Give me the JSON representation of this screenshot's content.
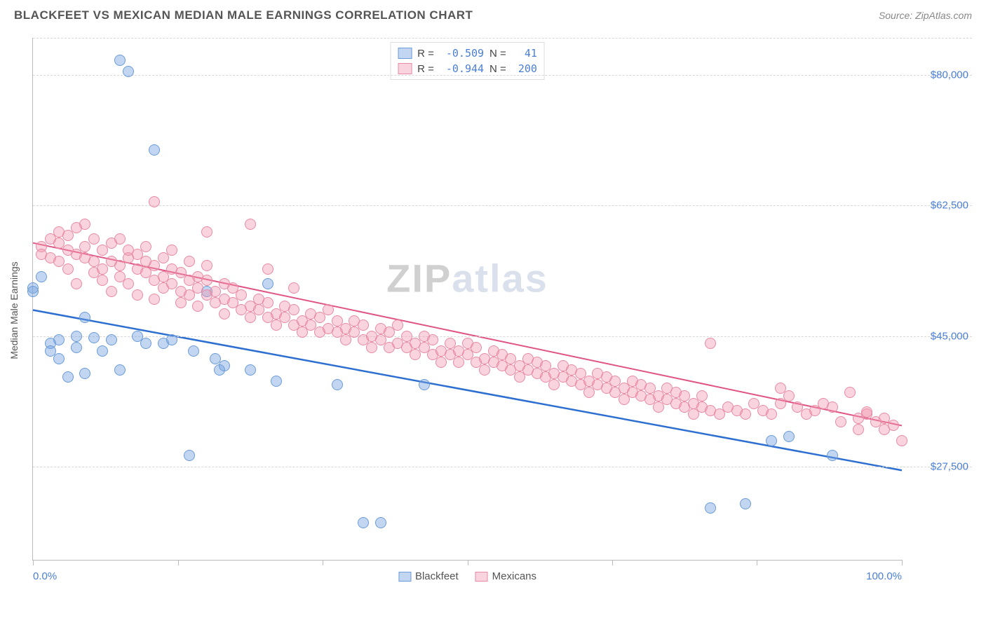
{
  "header": {
    "title": "BLACKFEET VS MEXICAN MEDIAN MALE EARNINGS CORRELATION CHART",
    "source": "Source: ZipAtlas.com"
  },
  "chart": {
    "type": "scatter",
    "ylabel": "Median Male Earnings",
    "xlim": [
      0,
      100
    ],
    "ylim": [
      15000,
      85000
    ],
    "xtick_labels": {
      "0": "0.0%",
      "100": "100.0%"
    },
    "xtick_positions": [
      0,
      16.67,
      33.33,
      50,
      66.67,
      83.33,
      100
    ],
    "yticks": [
      27500,
      45000,
      62500,
      80000
    ],
    "ytick_labels": [
      "$27,500",
      "$45,000",
      "$62,500",
      "$80,000"
    ],
    "grid_color": "#d8d8d8",
    "background_color": "#ffffff",
    "watermark": "ZIPatlas",
    "series": [
      {
        "name": "Blackfeet",
        "label": "Blackfeet",
        "fill_color": "rgba(120,165,225,0.45)",
        "stroke_color": "#6b9bd8",
        "line_color": "#2d6fd0",
        "line_width": 2.5,
        "r_value": "-0.509",
        "n_value": "41",
        "trend": {
          "x1": 0,
          "y1": 48500,
          "x2": 100,
          "y2": 27000
        },
        "point_radius": 8,
        "points": [
          [
            0,
            51500
          ],
          [
            0,
            51000
          ],
          [
            1,
            53000
          ],
          [
            2,
            44000
          ],
          [
            2,
            43000
          ],
          [
            3,
            44500
          ],
          [
            3,
            42000
          ],
          [
            4,
            39500
          ],
          [
            5,
            45000
          ],
          [
            5,
            43500
          ],
          [
            6,
            47500
          ],
          [
            6,
            40000
          ],
          [
            7,
            44800
          ],
          [
            8,
            43000
          ],
          [
            9,
            44500
          ],
          [
            10,
            40500
          ],
          [
            10,
            82000
          ],
          [
            11,
            80500
          ],
          [
            12,
            45000
          ],
          [
            13,
            44000
          ],
          [
            14,
            70000
          ],
          [
            15,
            44000
          ],
          [
            16,
            44500
          ],
          [
            18,
            29000
          ],
          [
            18.5,
            43000
          ],
          [
            20,
            51000
          ],
          [
            21,
            42000
          ],
          [
            21.5,
            40500
          ],
          [
            22,
            41000
          ],
          [
            25,
            40500
          ],
          [
            27,
            52000
          ],
          [
            28,
            39000
          ],
          [
            35,
            38500
          ],
          [
            38,
            20000
          ],
          [
            40,
            20000
          ],
          [
            45,
            38500
          ],
          [
            78,
            22000
          ],
          [
            82,
            22500
          ],
          [
            85,
            31000
          ],
          [
            87,
            31500
          ],
          [
            92,
            29000
          ]
        ]
      },
      {
        "name": "Mexicans",
        "label": "Mexicans",
        "fill_color": "rgba(240,150,175,0.42)",
        "stroke_color": "#e88aa5",
        "line_color": "#e05585",
        "line_width": 2,
        "r_value": "-0.944",
        "n_value": "200",
        "trend": {
          "x1": 0,
          "y1": 57500,
          "x2": 100,
          "y2": 33000
        },
        "point_radius": 8,
        "points": [
          [
            1,
            57000
          ],
          [
            1,
            56000
          ],
          [
            2,
            58000
          ],
          [
            2,
            55500
          ],
          [
            3,
            57500
          ],
          [
            3,
            55000
          ],
          [
            3,
            59000
          ],
          [
            4,
            56500
          ],
          [
            4,
            58500
          ],
          [
            4,
            54000
          ],
          [
            5,
            56000
          ],
          [
            5,
            59500
          ],
          [
            5,
            52000
          ],
          [
            6,
            57000
          ],
          [
            6,
            55500
          ],
          [
            6,
            60000
          ],
          [
            7,
            55000
          ],
          [
            7,
            53500
          ],
          [
            7,
            58000
          ],
          [
            8,
            56500
          ],
          [
            8,
            54000
          ],
          [
            8,
            52500
          ],
          [
            9,
            55000
          ],
          [
            9,
            57500
          ],
          [
            9,
            51000
          ],
          [
            10,
            54500
          ],
          [
            10,
            53000
          ],
          [
            10,
            58000
          ],
          [
            11,
            55500
          ],
          [
            11,
            52000
          ],
          [
            11,
            56500
          ],
          [
            12,
            54000
          ],
          [
            12,
            50500
          ],
          [
            12,
            56000
          ],
          [
            13,
            53500
          ],
          [
            13,
            55000
          ],
          [
            13,
            57000
          ],
          [
            14,
            52500
          ],
          [
            14,
            54500
          ],
          [
            14,
            50000
          ],
          [
            14,
            63000
          ],
          [
            15,
            53000
          ],
          [
            15,
            55500
          ],
          [
            15,
            51500
          ],
          [
            16,
            52000
          ],
          [
            16,
            54000
          ],
          [
            16,
            56500
          ],
          [
            17,
            51000
          ],
          [
            17,
            53500
          ],
          [
            17,
            49500
          ],
          [
            18,
            52500
          ],
          [
            18,
            50500
          ],
          [
            18,
            55000
          ],
          [
            19,
            51500
          ],
          [
            19,
            53000
          ],
          [
            19,
            49000
          ],
          [
            20,
            50500
          ],
          [
            20,
            52500
          ],
          [
            20,
            54500
          ],
          [
            20,
            59000
          ],
          [
            21,
            51000
          ],
          [
            21,
            49500
          ],
          [
            22,
            50000
          ],
          [
            22,
            52000
          ],
          [
            22,
            48000
          ],
          [
            23,
            49500
          ],
          [
            23,
            51500
          ],
          [
            24,
            48500
          ],
          [
            24,
            50500
          ],
          [
            25,
            49000
          ],
          [
            25,
            47500
          ],
          [
            25,
            60000
          ],
          [
            26,
            48500
          ],
          [
            26,
            50000
          ],
          [
            27,
            47500
          ],
          [
            27,
            49500
          ],
          [
            27,
            54000
          ],
          [
            28,
            48000
          ],
          [
            28,
            46500
          ],
          [
            29,
            47500
          ],
          [
            29,
            49000
          ],
          [
            30,
            46500
          ],
          [
            30,
            48500
          ],
          [
            30,
            51500
          ],
          [
            31,
            47000
          ],
          [
            31,
            45500
          ],
          [
            32,
            46500
          ],
          [
            32,
            48000
          ],
          [
            33,
            45500
          ],
          [
            33,
            47500
          ],
          [
            34,
            46000
          ],
          [
            34,
            48500
          ],
          [
            35,
            45500
          ],
          [
            35,
            47000
          ],
          [
            36,
            46000
          ],
          [
            36,
            44500
          ],
          [
            37,
            45500
          ],
          [
            37,
            47000
          ],
          [
            38,
            44500
          ],
          [
            38,
            46500
          ],
          [
            39,
            45000
          ],
          [
            39,
            43500
          ],
          [
            40,
            44500
          ],
          [
            40,
            46000
          ],
          [
            41,
            43500
          ],
          [
            41,
            45500
          ],
          [
            42,
            44000
          ],
          [
            42,
            46500
          ],
          [
            43,
            43500
          ],
          [
            43,
            45000
          ],
          [
            44,
            44000
          ],
          [
            44,
            42500
          ],
          [
            45,
            43500
          ],
          [
            45,
            45000
          ],
          [
            46,
            42500
          ],
          [
            46,
            44500
          ],
          [
            47,
            43000
          ],
          [
            47,
            41500
          ],
          [
            48,
            42500
          ],
          [
            48,
            44000
          ],
          [
            49,
            43000
          ],
          [
            49,
            41500
          ],
          [
            50,
            42500
          ],
          [
            50,
            44000
          ],
          [
            51,
            41500
          ],
          [
            51,
            43500
          ],
          [
            52,
            42000
          ],
          [
            52,
            40500
          ],
          [
            53,
            41500
          ],
          [
            53,
            43000
          ],
          [
            54,
            41000
          ],
          [
            54,
            42500
          ],
          [
            55,
            40500
          ],
          [
            55,
            42000
          ],
          [
            56,
            41000
          ],
          [
            56,
            39500
          ],
          [
            57,
            40500
          ],
          [
            57,
            42000
          ],
          [
            58,
            40000
          ],
          [
            58,
            41500
          ],
          [
            59,
            39500
          ],
          [
            59,
            41000
          ],
          [
            60,
            40000
          ],
          [
            60,
            38500
          ],
          [
            61,
            39500
          ],
          [
            61,
            41000
          ],
          [
            62,
            39000
          ],
          [
            62,
            40500
          ],
          [
            63,
            38500
          ],
          [
            63,
            40000
          ],
          [
            64,
            39000
          ],
          [
            64,
            37500
          ],
          [
            65,
            38500
          ],
          [
            65,
            40000
          ],
          [
            66,
            38000
          ],
          [
            66,
            39500
          ],
          [
            67,
            37500
          ],
          [
            67,
            39000
          ],
          [
            68,
            38000
          ],
          [
            68,
            36500
          ],
          [
            69,
            37500
          ],
          [
            69,
            39000
          ],
          [
            70,
            37000
          ],
          [
            70,
            38500
          ],
          [
            71,
            36500
          ],
          [
            71,
            38000
          ],
          [
            72,
            37000
          ],
          [
            72,
            35500
          ],
          [
            73,
            36500
          ],
          [
            73,
            38000
          ],
          [
            74,
            36000
          ],
          [
            74,
            37500
          ],
          [
            75,
            35500
          ],
          [
            75,
            37000
          ],
          [
            76,
            36000
          ],
          [
            76,
            34500
          ],
          [
            77,
            35500
          ],
          [
            77,
            37000
          ],
          [
            78,
            35000
          ],
          [
            78,
            44000
          ],
          [
            79,
            34500
          ],
          [
            80,
            35500
          ],
          [
            81,
            35000
          ],
          [
            82,
            34500
          ],
          [
            83,
            36000
          ],
          [
            84,
            35000
          ],
          [
            85,
            34500
          ],
          [
            86,
            36000
          ],
          [
            86,
            38000
          ],
          [
            87,
            37000
          ],
          [
            88,
            35500
          ],
          [
            89,
            34500
          ],
          [
            90,
            35000
          ],
          [
            91,
            36000
          ],
          [
            92,
            35500
          ],
          [
            93,
            33500
          ],
          [
            94,
            37500
          ],
          [
            95,
            34000
          ],
          [
            95,
            32500
          ],
          [
            96,
            34500
          ],
          [
            96,
            34800
          ],
          [
            97,
            33500
          ],
          [
            98,
            32500
          ],
          [
            98,
            34000
          ],
          [
            99,
            33000
          ],
          [
            100,
            31000
          ]
        ]
      }
    ]
  },
  "legend_bottom": [
    {
      "label": "Blackfeet",
      "fill": "rgba(120,165,225,0.45)",
      "stroke": "#6b9bd8"
    },
    {
      "label": "Mexicans",
      "fill": "rgba(240,150,175,0.42)",
      "stroke": "#e88aa5"
    }
  ]
}
